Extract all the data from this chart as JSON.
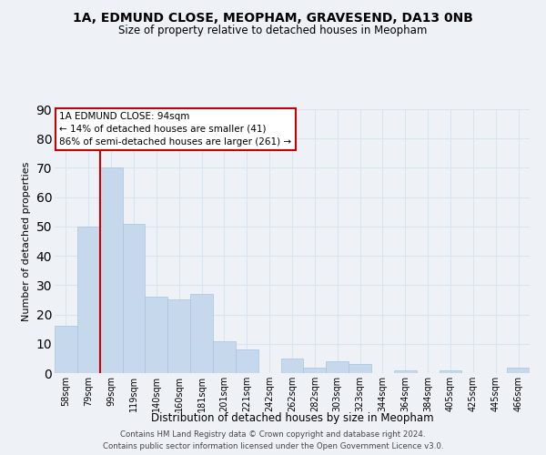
{
  "title": "1A, EDMUND CLOSE, MEOPHAM, GRAVESEND, DA13 0NB",
  "subtitle": "Size of property relative to detached houses in Meopham",
  "xlabel": "Distribution of detached houses by size in Meopham",
  "ylabel": "Number of detached properties",
  "bar_labels": [
    "58sqm",
    "79sqm",
    "99sqm",
    "119sqm",
    "140sqm",
    "160sqm",
    "181sqm",
    "201sqm",
    "221sqm",
    "242sqm",
    "262sqm",
    "282sqm",
    "303sqm",
    "323sqm",
    "344sqm",
    "364sqm",
    "384sqm",
    "405sqm",
    "425sqm",
    "445sqm",
    "466sqm"
  ],
  "bar_values": [
    16,
    50,
    70,
    51,
    26,
    25,
    27,
    11,
    8,
    0,
    5,
    2,
    4,
    3,
    0,
    1,
    0,
    1,
    0,
    0,
    2
  ],
  "bar_color": "#c6d9ec",
  "bar_edge_color": "#a8c4dc",
  "marker_line_color": "#cc0000",
  "ylim": [
    0,
    90
  ],
  "yticks": [
    0,
    10,
    20,
    30,
    40,
    50,
    60,
    70,
    80,
    90
  ],
  "annotation_title": "1A EDMUND CLOSE: 94sqm",
  "annotation_line1": "← 14% of detached houses are smaller (41)",
  "annotation_line2": "86% of semi-detached houses are larger (261) →",
  "annotation_box_color": "#ffffff",
  "annotation_box_edge": "#cc0000",
  "grid_color": "#d8e4f0",
  "footer_line1": "Contains HM Land Registry data © Crown copyright and database right 2024.",
  "footer_line2": "Contains public sector information licensed under the Open Government Licence v3.0.",
  "bg_color": "#eef2f7"
}
